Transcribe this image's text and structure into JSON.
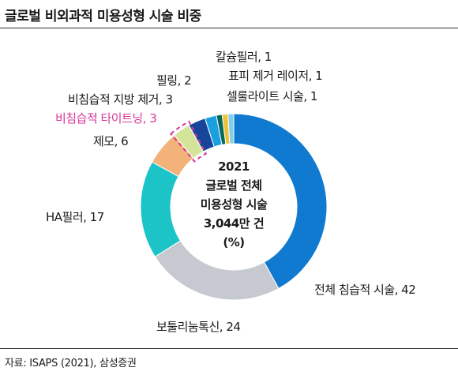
{
  "title": "글로벌 비외과적 미용성형 시술 비중",
  "source": "자료: ISAPS (2021), 삼성증권",
  "chart_data": {
    "type": "pie",
    "donut": true,
    "unit": "%",
    "center_text": [
      "2021",
      "글로벌 전체",
      "미용성형 시술",
      "3,044만 건",
      "(%)"
    ],
    "slices": [
      {
        "name": "전체 침습적 시술",
        "value": 42,
        "label": "전체 침습적 시술, 42",
        "color": "#0f7ad0",
        "highlight": false
      },
      {
        "name": "보톨리눔톡신",
        "value": 24,
        "label": "보툴리눔톡신, 24",
        "color": "#c6c9d0",
        "highlight": false
      },
      {
        "name": "HA필러",
        "value": 17,
        "label": "HA필러, 17",
        "color": "#1cc4c8",
        "highlight": false
      },
      {
        "name": "제모",
        "value": 6,
        "label": "제모, 6",
        "color": "#f2b27a",
        "highlight": false
      },
      {
        "name": "비침습적 타이트닝",
        "value": 3,
        "label": "비침습적 타이트닝, 3",
        "color": "#d4e59a",
        "highlight": true
      },
      {
        "name": "비침습적 지방 제거",
        "value": 3,
        "label": "비침습적 지방 제거, 3",
        "color": "#17459a",
        "highlight": false
      },
      {
        "name": "필링",
        "value": 2,
        "label": "필링, 2",
        "color": "#1aa0e0",
        "highlight": false
      },
      {
        "name": "칼슘필러",
        "value": 1,
        "label": "칼슘필러, 1",
        "color": "#0a6a5a",
        "highlight": false
      },
      {
        "name": "표피 제거 레이저",
        "value": 1,
        "label": "표피 제거 레이저, 1",
        "color": "#f0c23a",
        "highlight": false
      },
      {
        "name": "셀룰라이트 시술",
        "value": 1,
        "label": "셀룰라이트 시술, 1",
        "color": "#7fd0e8",
        "highlight": false
      }
    ]
  },
  "colors": {
    "highlight_label": "#d6389a",
    "highlight_border": "#d6389a"
  }
}
